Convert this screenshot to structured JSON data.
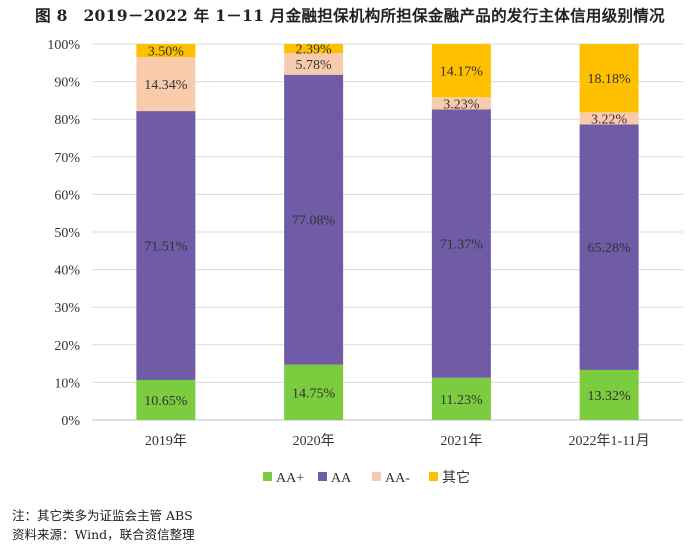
{
  "title": "图 8　2019－2022 年 1－11 月金融担保机构所担保金融产品的发行主体信用级别情况",
  "notes": [
    "注：其它类多为证监会主管 ABS",
    "资料来源：Wind，联合资信整理"
  ],
  "chart_data": {
    "type": "bar",
    "stacked": true,
    "percent_stacked": true,
    "categories": [
      "2019年",
      "2020年",
      "2021年",
      "2022年1-11月"
    ],
    "series": [
      {
        "name": "AA+",
        "color": "#7ccc3f",
        "values": [
          10.65,
          14.75,
          11.23,
          13.32
        ],
        "labels": [
          "10.65%",
          "14.75%",
          "11.23%",
          "13.32%"
        ]
      },
      {
        "name": "AA",
        "color": "#6f5ba6",
        "values": [
          71.51,
          77.08,
          71.37,
          65.28
        ],
        "labels": [
          "71.51%",
          "77.08%",
          "71.37%",
          "65.28%"
        ]
      },
      {
        "name": "AA-",
        "color": "#f8cbad",
        "values": [
          14.34,
          5.78,
          3.23,
          3.22
        ],
        "labels": [
          "14.34%",
          "5.78%",
          "3.23%",
          "3.22%"
        ]
      },
      {
        "name": "其它",
        "color": "#ffc000",
        "values": [
          3.5,
          2.39,
          14.17,
          18.18
        ],
        "labels": [
          "3.50%",
          "2.39%",
          "14.17%",
          "18.18%"
        ]
      }
    ],
    "ylim": [
      0,
      100
    ],
    "yticks": [
      "0%",
      "10%",
      "20%",
      "30%",
      "40%",
      "50%",
      "60%",
      "70%",
      "80%",
      "90%",
      "100%"
    ],
    "grid": true,
    "legend": "bottom"
  }
}
